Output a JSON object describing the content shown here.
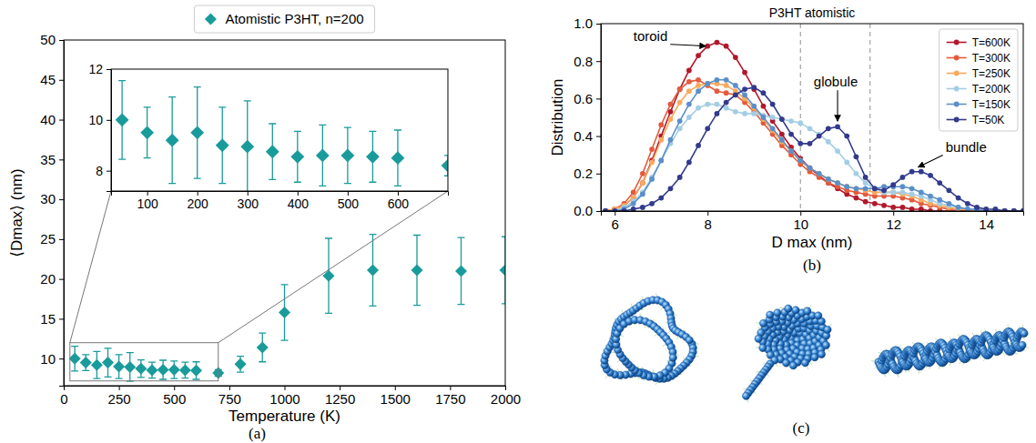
{
  "chart_data": [
    {
      "type": "scatter",
      "caption": "(a)",
      "xlabel": "Temperature (K)",
      "ylabel": "⟨Dmax⟩ (nm)",
      "legend": "top",
      "xlim": [
        0,
        2000
      ],
      "xticks": [
        0,
        250,
        500,
        750,
        1000,
        1250,
        1500,
        1750,
        2000
      ],
      "ylim": [
        6.6,
        50
      ],
      "yticks": [
        10,
        15,
        20,
        25,
        30,
        35,
        40,
        45,
        50
      ],
      "x": [
        50,
        100,
        150,
        200,
        250,
        300,
        350,
        400,
        450,
        500,
        550,
        600,
        700,
        800,
        900,
        1000,
        1200,
        1400,
        1600,
        1800,
        2000
      ],
      "series": [
        {
          "name": "Atomistic P3HT, n=200",
          "color": "#1a9b9b",
          "marker": "diamond",
          "values": [
            10.0,
            9.5,
            9.2,
            9.5,
            9.0,
            8.95,
            8.75,
            8.55,
            8.6,
            8.6,
            8.55,
            8.5,
            8.2,
            9.3,
            11.4,
            15.8,
            20.4,
            21.1,
            21.1,
            21.0,
            21.1
          ],
          "errors": [
            1.55,
            1.0,
            1.7,
            1.8,
            1.5,
            1.8,
            1.1,
            1.0,
            1.2,
            1.1,
            1.0,
            1.1,
            0.4,
            1.0,
            1.8,
            3.5,
            4.7,
            4.5,
            4.4,
            4.2,
            4.2
          ]
        }
      ],
      "inset": {
        "xlim": [
          28,
          700
        ],
        "ylim": [
          7.2,
          12
        ],
        "xticks": [
          100,
          200,
          300,
          400,
          500,
          600
        ],
        "yticks": [
          8,
          10,
          12
        ]
      }
    },
    {
      "type": "line",
      "title": "P3HT atomistic",
      "caption": "(b)",
      "xlabel": "D max (nm)",
      "ylabel": "Distribution",
      "legend": "upper right",
      "marker": "circle",
      "xlim": [
        5.7,
        14.8
      ],
      "xticks": [
        6,
        8,
        10,
        12,
        14
      ],
      "ylim": [
        0,
        1.0
      ],
      "yticks": [
        {
          "value": 0,
          "label": "0.0"
        },
        {
          "value": 0.2,
          "label": "0.2"
        },
        {
          "value": 0.4,
          "label": "0.4"
        },
        {
          "value": 0.6,
          "label": "0.6"
        },
        {
          "value": 0.8,
          "label": "0.8"
        },
        {
          "value": 1.0,
          "label": "1.0"
        }
      ],
      "vlines": [
        10,
        11.5
      ],
      "annotations": [
        {
          "text": "toroid",
          "x": 8.0,
          "y": 0.88
        },
        {
          "text": "globule",
          "x": 10.8,
          "y": 0.47
        },
        {
          "text": "bundle",
          "x": 12.5,
          "y": 0.23
        }
      ],
      "x": [
        5.8,
        6.0,
        6.2,
        6.4,
        6.6,
        6.8,
        7.0,
        7.2,
        7.4,
        7.6,
        7.8,
        8.0,
        8.2,
        8.4,
        8.6,
        8.8,
        9.0,
        9.2,
        9.4,
        9.6,
        9.8,
        10.0,
        10.2,
        10.4,
        10.6,
        10.8,
        11.0,
        11.2,
        11.4,
        11.6,
        11.8,
        12.0,
        12.2,
        12.4,
        12.6,
        12.8,
        13.0,
        13.2,
        13.4,
        13.6,
        13.8,
        14.0,
        14.2,
        14.4,
        14.6,
        14.8
      ],
      "series": [
        {
          "name": "T=600K",
          "color": "#b2182b",
          "values": [
            0,
            0.01,
            0.03,
            0.07,
            0.15,
            0.27,
            0.4,
            0.53,
            0.65,
            0.75,
            0.83,
            0.88,
            0.9,
            0.88,
            0.82,
            0.74,
            0.65,
            0.56,
            0.48,
            0.41,
            0.34,
            0.28,
            0.23,
            0.19,
            0.15,
            0.12,
            0.09,
            0.07,
            0.05,
            0.04,
            0.03,
            0.02,
            0.02,
            0.01,
            0.01,
            0,
            0,
            0,
            0,
            0,
            0,
            0,
            0,
            0,
            0,
            0
          ]
        },
        {
          "name": "T=300K",
          "color": "#e45a3c",
          "values": [
            0,
            0.01,
            0.04,
            0.1,
            0.2,
            0.33,
            0.46,
            0.57,
            0.65,
            0.69,
            0.7,
            0.67,
            0.64,
            0.63,
            0.62,
            0.58,
            0.53,
            0.47,
            0.41,
            0.35,
            0.3,
            0.25,
            0.21,
            0.18,
            0.15,
            0.13,
            0.11,
            0.1,
            0.09,
            0.08,
            0.08,
            0.08,
            0.07,
            0.06,
            0.04,
            0.03,
            0.02,
            0.01,
            0.01,
            0,
            0,
            0,
            0,
            0,
            0,
            0
          ]
        },
        {
          "name": "T=250K",
          "color": "#f9a95c",
          "values": [
            0,
            0.01,
            0.03,
            0.07,
            0.15,
            0.26,
            0.38,
            0.49,
            0.58,
            0.64,
            0.67,
            0.68,
            0.68,
            0.67,
            0.64,
            0.6,
            0.55,
            0.49,
            0.43,
            0.37,
            0.32,
            0.27,
            0.23,
            0.2,
            0.17,
            0.15,
            0.13,
            0.12,
            0.11,
            0.1,
            0.1,
            0.1,
            0.09,
            0.08,
            0.06,
            0.04,
            0.03,
            0.02,
            0.01,
            0.01,
            0,
            0,
            0,
            0,
            0,
            0
          ]
        },
        {
          "name": "T=200K",
          "color": "#a3cde3",
          "values": [
            0,
            0,
            0.02,
            0.05,
            0.1,
            0.18,
            0.27,
            0.36,
            0.44,
            0.5,
            0.55,
            0.57,
            0.57,
            0.55,
            0.53,
            0.52,
            0.52,
            0.51,
            0.5,
            0.49,
            0.48,
            0.47,
            0.44,
            0.41,
            0.37,
            0.32,
            0.26,
            0.2,
            0.15,
            0.12,
            0.1,
            0.1,
            0.1,
            0.09,
            0.08,
            0.06,
            0.04,
            0.03,
            0.02,
            0.01,
            0.01,
            0,
            0,
            0,
            0,
            0
          ]
        },
        {
          "name": "T=150K",
          "color": "#5b8fc9",
          "values": [
            0,
            0,
            0.01,
            0.04,
            0.09,
            0.17,
            0.27,
            0.38,
            0.48,
            0.57,
            0.64,
            0.68,
            0.7,
            0.7,
            0.67,
            0.62,
            0.56,
            0.5,
            0.44,
            0.38,
            0.32,
            0.27,
            0.23,
            0.2,
            0.17,
            0.15,
            0.13,
            0.12,
            0.12,
            0.12,
            0.13,
            0.13,
            0.13,
            0.12,
            0.1,
            0.08,
            0.06,
            0.04,
            0.02,
            0.01,
            0.01,
            0,
            0,
            0,
            0,
            0
          ]
        },
        {
          "name": "T=50K",
          "color": "#333a8c",
          "values": [
            0,
            0,
            0,
            0.01,
            0.02,
            0.04,
            0.07,
            0.12,
            0.18,
            0.26,
            0.35,
            0.44,
            0.52,
            0.58,
            0.62,
            0.65,
            0.66,
            0.63,
            0.57,
            0.49,
            0.41,
            0.36,
            0.36,
            0.4,
            0.44,
            0.45,
            0.4,
            0.29,
            0.18,
            0.12,
            0.11,
            0.14,
            0.18,
            0.21,
            0.21,
            0.19,
            0.15,
            0.11,
            0.07,
            0.04,
            0.02,
            0.01,
            0.01,
            0,
            0,
            0
          ]
        }
      ]
    },
    {
      "type": "illustration",
      "caption": "(c)"
    }
  ]
}
